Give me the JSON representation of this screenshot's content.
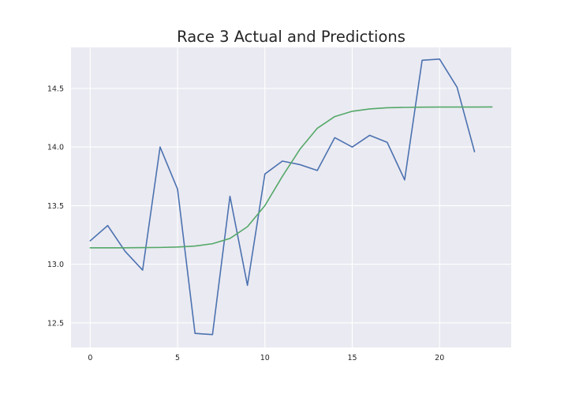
{
  "chart_data": {
    "type": "line",
    "title": "Race 3 Actual and Predictions",
    "xlabel": "",
    "ylabel": "",
    "xlim": [
      -1.1,
      24.1
    ],
    "ylim": [
      12.29,
      14.85
    ],
    "grid": true,
    "x_ticks": [
      0,
      5,
      10,
      15,
      20
    ],
    "y_ticks": [
      12.5,
      13.0,
      13.5,
      14.0,
      14.5
    ],
    "x_tick_labels": [
      "0",
      "5",
      "10",
      "15",
      "20"
    ],
    "y_tick_labels": [
      "12.5",
      "13.0",
      "13.5",
      "14.0",
      "14.5"
    ],
    "series": [
      {
        "color": "#4c72b0",
        "x": [
          0,
          1,
          2,
          3,
          4,
          5,
          6,
          7,
          8,
          9,
          10,
          11,
          12,
          13,
          14,
          15,
          16,
          17,
          18,
          19,
          20,
          21,
          22,
          23
        ],
        "values": [
          13.2,
          13.33,
          13.11,
          12.95,
          14.0,
          13.64,
          12.41,
          12.4,
          13.58,
          12.82,
          13.77,
          13.88,
          13.85,
          13.8,
          14.08,
          14.0,
          14.1,
          14.04,
          13.72,
          14.74,
          14.75,
          14.51,
          13.96,
          null
        ]
      },
      {
        "color": "#55a868",
        "x": [
          0,
          1,
          2,
          3,
          4,
          5,
          6,
          7,
          8,
          9,
          10,
          11,
          12,
          13,
          14,
          15,
          16,
          17,
          18,
          19,
          20,
          21,
          22,
          23
        ],
        "values": [
          13.14,
          13.14,
          13.14,
          13.142,
          13.143,
          13.147,
          13.155,
          13.175,
          13.22,
          13.32,
          13.5,
          13.75,
          13.98,
          14.16,
          14.26,
          14.305,
          14.325,
          14.335,
          14.338,
          14.34,
          14.341,
          14.341,
          14.341,
          14.342
        ]
      }
    ]
  }
}
